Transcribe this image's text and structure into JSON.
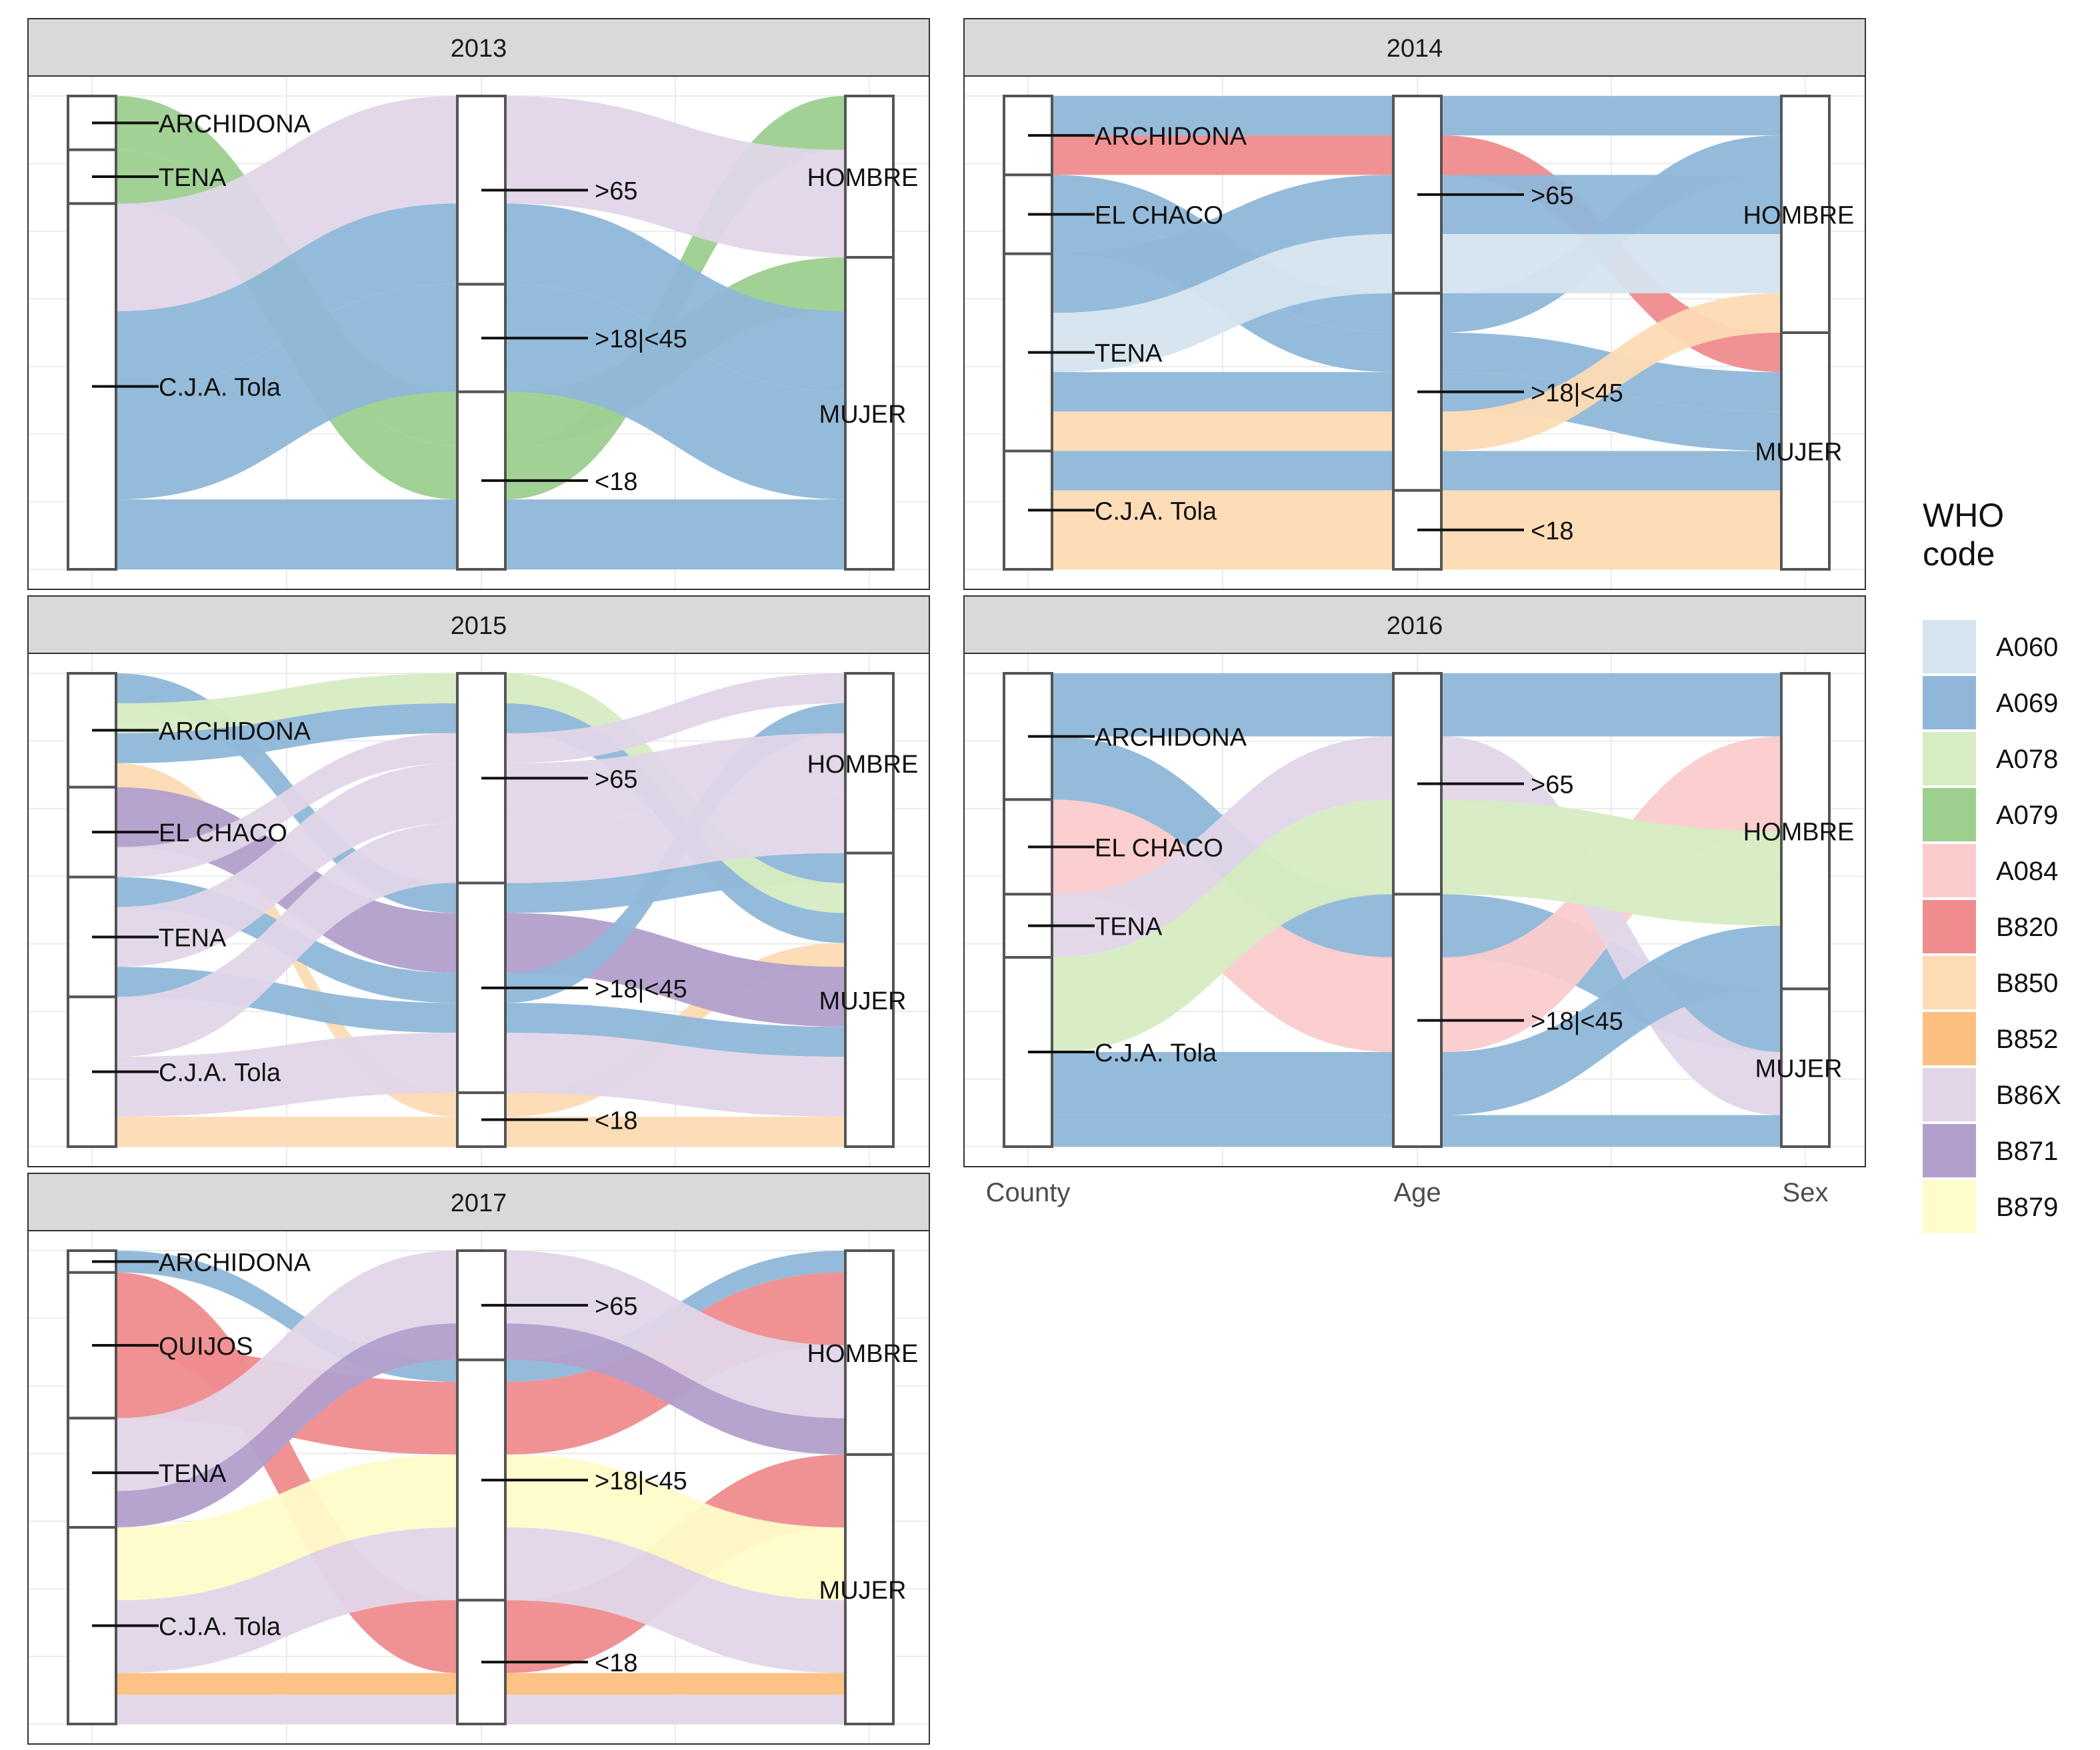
{
  "chart_data": {
    "type": "alluvial",
    "axes": [
      "County",
      "Age",
      "Sex"
    ],
    "legend": {
      "title_lines": [
        "WHO",
        "code"
      ],
      "position": "right",
      "items": [
        {
          "code": "A060",
          "color": "#d5e4ef"
        },
        {
          "code": "A069",
          "color": "#8fb7d9"
        },
        {
          "code": "A078",
          "color": "#d6ecc2"
        },
        {
          "code": "A079",
          "color": "#9dcf8f"
        },
        {
          "code": "A084",
          "color": "#fbcbcc"
        },
        {
          "code": "B820",
          "color": "#ef8c8e"
        },
        {
          "code": "B850",
          "color": "#fddbb4"
        },
        {
          "code": "B852",
          "color": "#fdbf80"
        },
        {
          "code": "B86X",
          "color": "#e0d6e8"
        },
        {
          "code": "B871",
          "color": "#b29fcc"
        },
        {
          "code": "B879",
          "color": "#fefcc9"
        }
      ]
    },
    "panels": [
      {
        "title": "2013",
        "strata": {
          "County": [
            "ARCHIDONA",
            "TENA",
            "C.J.A. Tola"
          ],
          "Age": [
            ">65",
            ">18|<45",
            "<18"
          ],
          "Sex": [
            "HOMBRE",
            "MUJER"
          ]
        },
        "flows": [
          {
            "code": "A079",
            "value": 1,
            "county": "ARCHIDONA",
            "age": "<18",
            "sex": "MUJER"
          },
          {
            "code": "A079",
            "value": 1,
            "county": "TENA",
            "age": "<18",
            "sex": "HOMBRE"
          },
          {
            "code": "B86X",
            "value": 2,
            "county": "C.J.A. Tola",
            "age": ">65",
            "sex": "HOMBRE"
          },
          {
            "code": "A069",
            "value": 1.5,
            "county": "C.J.A. Tola",
            "age": ">65",
            "sex": "MUJER"
          },
          {
            "code": "A069",
            "value": 2,
            "county": "C.J.A. Tola",
            "age": ">18|<45",
            "sex": "MUJER"
          },
          {
            "code": "A069",
            "value": 1.3,
            "county": "C.J.A. Tola",
            "age": "<18",
            "sex": "MUJER"
          }
        ]
      },
      {
        "title": "2014",
        "strata": {
          "County": [
            "ARCHIDONA",
            "EL CHACO",
            "TENA",
            "C.J.A. Tola"
          ],
          "Age": [
            ">65",
            ">18|<45",
            "<18"
          ],
          "Sex": [
            "HOMBRE",
            "MUJER"
          ]
        },
        "flows": [
          {
            "code": "A069",
            "value": 1,
            "county": "ARCHIDONA",
            "age": ">65",
            "sex": "HOMBRE"
          },
          {
            "code": "B820",
            "value": 1,
            "county": "ARCHIDONA",
            "age": ">65",
            "sex": "MUJER"
          },
          {
            "code": "A069",
            "value": 1,
            "county": "EL CHACO",
            "age": ">18|<45",
            "sex": "HOMBRE"
          },
          {
            "code": "A069",
            "value": 1,
            "county": "EL CHACO",
            "age": ">18|<45",
            "sex": "MUJER"
          },
          {
            "code": "A069",
            "value": 1.5,
            "county": "TENA",
            "age": ">65",
            "sex": "HOMBRE"
          },
          {
            "code": "A060",
            "value": 1.5,
            "county": "TENA",
            "age": ">65",
            "sex": "HOMBRE"
          },
          {
            "code": "A069",
            "value": 1,
            "county": "TENA",
            "age": ">18|<45",
            "sex": "MUJER"
          },
          {
            "code": "B850",
            "value": 1,
            "county": "TENA",
            "age": ">18|<45",
            "sex": "HOMBRE"
          },
          {
            "code": "A069",
            "value": 1,
            "county": "C.J.A. Tola",
            "age": ">18|<45",
            "sex": "MUJER"
          },
          {
            "code": "B850",
            "value": 1,
            "county": "C.J.A. Tola",
            "age": "<18",
            "sex": "MUJER"
          },
          {
            "code": "B850",
            "value": 1,
            "county": "C.J.A. Tola",
            "age": "<18",
            "sex": "MUJER"
          }
        ]
      },
      {
        "title": "2015",
        "strata": {
          "County": [
            "ARCHIDONA",
            "EL CHACO",
            "TENA",
            "C.J.A. Tola"
          ],
          "Age": [
            ">65",
            ">18|<45",
            "<18"
          ],
          "Sex": [
            "HOMBRE",
            "MUJER"
          ]
        },
        "flows": [
          {
            "code": "A069",
            "value": 0.5,
            "county": "ARCHIDONA",
            "age": ">18|<45",
            "sex": "MUJER"
          },
          {
            "code": "A078",
            "value": 0.5,
            "county": "ARCHIDONA",
            "age": ">65",
            "sex": "MUJER"
          },
          {
            "code": "A069",
            "value": 0.5,
            "county": "ARCHIDONA",
            "age": ">65",
            "sex": "MUJER"
          },
          {
            "code": "B850",
            "value": 0.4,
            "county": "ARCHIDONA",
            "age": "<18",
            "sex": "MUJER"
          },
          {
            "code": "B871",
            "value": 1,
            "county": "EL CHACO",
            "age": ">18|<45",
            "sex": "MUJER"
          },
          {
            "code": "B86X",
            "value": 0.5,
            "county": "EL CHACO",
            "age": ">65",
            "sex": "HOMBRE"
          },
          {
            "code": "A069",
            "value": 0.5,
            "county": "TENA",
            "age": ">18|<45",
            "sex": "HOMBRE"
          },
          {
            "code": "B86X",
            "value": 1,
            "county": "TENA",
            "age": ">65",
            "sex": "HOMBRE"
          },
          {
            "code": "A069",
            "value": 0.5,
            "county": "TENA",
            "age": ">18|<45",
            "sex": "MUJER"
          },
          {
            "code": "B86X",
            "value": 1,
            "county": "C.J.A. Tola",
            "age": ">65",
            "sex": "HOMBRE"
          },
          {
            "code": "B86X",
            "value": 1,
            "county": "C.J.A. Tola",
            "age": ">18|<45",
            "sex": "MUJER"
          },
          {
            "code": "B850",
            "value": 0.5,
            "county": "C.J.A. Tola",
            "age": "<18",
            "sex": "MUJER"
          }
        ]
      },
      {
        "title": "2016",
        "strata": {
          "County": [
            "ARCHIDONA",
            "EL CHACO",
            "TENA",
            "C.J.A. Tola"
          ],
          "Age": [
            ">65",
            ">18|<45"
          ],
          "Sex": [
            "HOMBRE",
            "MUJER"
          ]
        },
        "flows": [
          {
            "code": "A069",
            "value": 1,
            "county": "ARCHIDONA",
            "age": ">65",
            "sex": "HOMBRE"
          },
          {
            "code": "A069",
            "value": 1,
            "county": "ARCHIDONA",
            "age": ">18|<45",
            "sex": "MUJER"
          },
          {
            "code": "A084",
            "value": 1.5,
            "county": "EL CHACO",
            "age": ">18|<45",
            "sex": "HOMBRE"
          },
          {
            "code": "B86X",
            "value": 1,
            "county": "TENA",
            "age": ">65",
            "sex": "MUJER"
          },
          {
            "code": "A078",
            "value": 1.5,
            "county": "C.J.A. Tola",
            "age": ">65",
            "sex": "HOMBRE"
          },
          {
            "code": "A069",
            "value": 1,
            "county": "C.J.A. Tola",
            "age": ">18|<45",
            "sex": "HOMBRE"
          },
          {
            "code": "A069",
            "value": 0.5,
            "county": "C.J.A. Tola",
            "age": ">18|<45",
            "sex": "MUJER"
          }
        ]
      },
      {
        "title": "2017",
        "strata": {
          "County": [
            "ARCHIDONA",
            "QUIJOS",
            "TENA",
            "C.J.A. Tola"
          ],
          "Age": [
            ">65",
            ">18|<45",
            "<18"
          ],
          "Sex": [
            "HOMBRE",
            "MUJER"
          ]
        },
        "flows": [
          {
            "code": "A069",
            "value": 0.3,
            "county": "ARCHIDONA",
            "age": ">18|<45",
            "sex": "HOMBRE"
          },
          {
            "code": "B820",
            "value": 1,
            "county": "QUIJOS",
            "age": "<18",
            "sex": "MUJER"
          },
          {
            "code": "B820",
            "value": 1,
            "county": "QUIJOS",
            "age": ">18|<45",
            "sex": "HOMBRE"
          },
          {
            "code": "B86X",
            "value": 1,
            "county": "TENA",
            "age": ">65",
            "sex": "HOMBRE"
          },
          {
            "code": "B871",
            "value": 0.5,
            "county": "TENA",
            "age": ">65",
            "sex": "HOMBRE"
          },
          {
            "code": "B879",
            "value": 1,
            "county": "C.J.A. Tola",
            "age": ">18|<45",
            "sex": "MUJER"
          },
          {
            "code": "B86X",
            "value": 1,
            "county": "C.J.A. Tola",
            "age": ">18|<45",
            "sex": "MUJER"
          },
          {
            "code": "B852",
            "value": 0.3,
            "county": "C.J.A. Tola",
            "age": "<18",
            "sex": "MUJER"
          },
          {
            "code": "B86X",
            "value": 0.4,
            "county": "C.J.A. Tola",
            "age": "<18",
            "sex": "MUJER"
          }
        ]
      }
    ]
  }
}
